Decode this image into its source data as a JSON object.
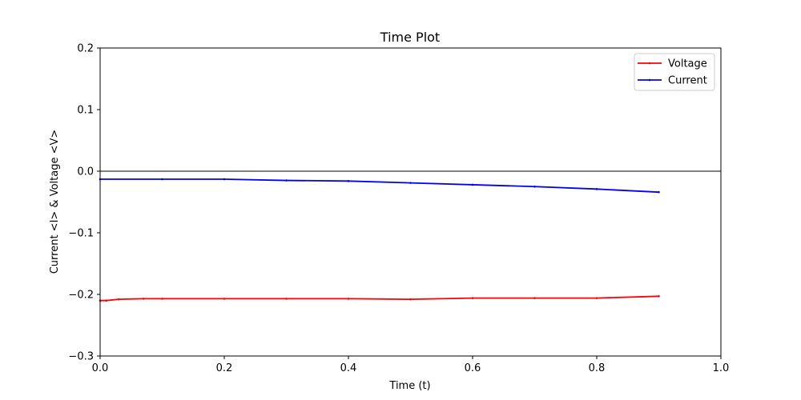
{
  "chart_data": {
    "type": "line",
    "title": "Time Plot",
    "xlabel": "Time (t)",
    "ylabel": "Current <I> & Voltage <V>",
    "xlim": [
      0.0,
      1.0
    ],
    "ylim": [
      -0.3,
      0.2
    ],
    "x_ticks": [
      0.0,
      0.2,
      0.4,
      0.6,
      0.8,
      1.0
    ],
    "x_tick_labels": [
      "0.0",
      "0.2",
      "0.4",
      "0.6",
      "0.8",
      "1.0"
    ],
    "y_ticks": [
      -0.3,
      -0.2,
      -0.1,
      0.0,
      0.1,
      0.2
    ],
    "y_tick_labels": [
      "−0.3",
      "−0.2",
      "−0.1",
      "0.0",
      "0.1",
      "0.2"
    ],
    "hline": 0.0,
    "grid": false,
    "legend_position": "top-right",
    "series": [
      {
        "name": "Voltage",
        "color": "#ff0000",
        "x": [
          0.0,
          0.01,
          0.03,
          0.07,
          0.1,
          0.2,
          0.3,
          0.4,
          0.5,
          0.6,
          0.7,
          0.8,
          0.9
        ],
        "values": [
          -0.21,
          -0.21,
          -0.208,
          -0.207,
          -0.207,
          -0.207,
          -0.207,
          -0.207,
          -0.208,
          -0.206,
          -0.206,
          -0.206,
          -0.203
        ]
      },
      {
        "name": "Current",
        "color": "#0000ff",
        "x": [
          0.0,
          0.1,
          0.2,
          0.3,
          0.4,
          0.5,
          0.6,
          0.7,
          0.8,
          0.9
        ],
        "values": [
          -0.013,
          -0.013,
          -0.013,
          -0.015,
          -0.016,
          -0.019,
          -0.022,
          -0.025,
          -0.029,
          -0.034
        ]
      }
    ]
  }
}
